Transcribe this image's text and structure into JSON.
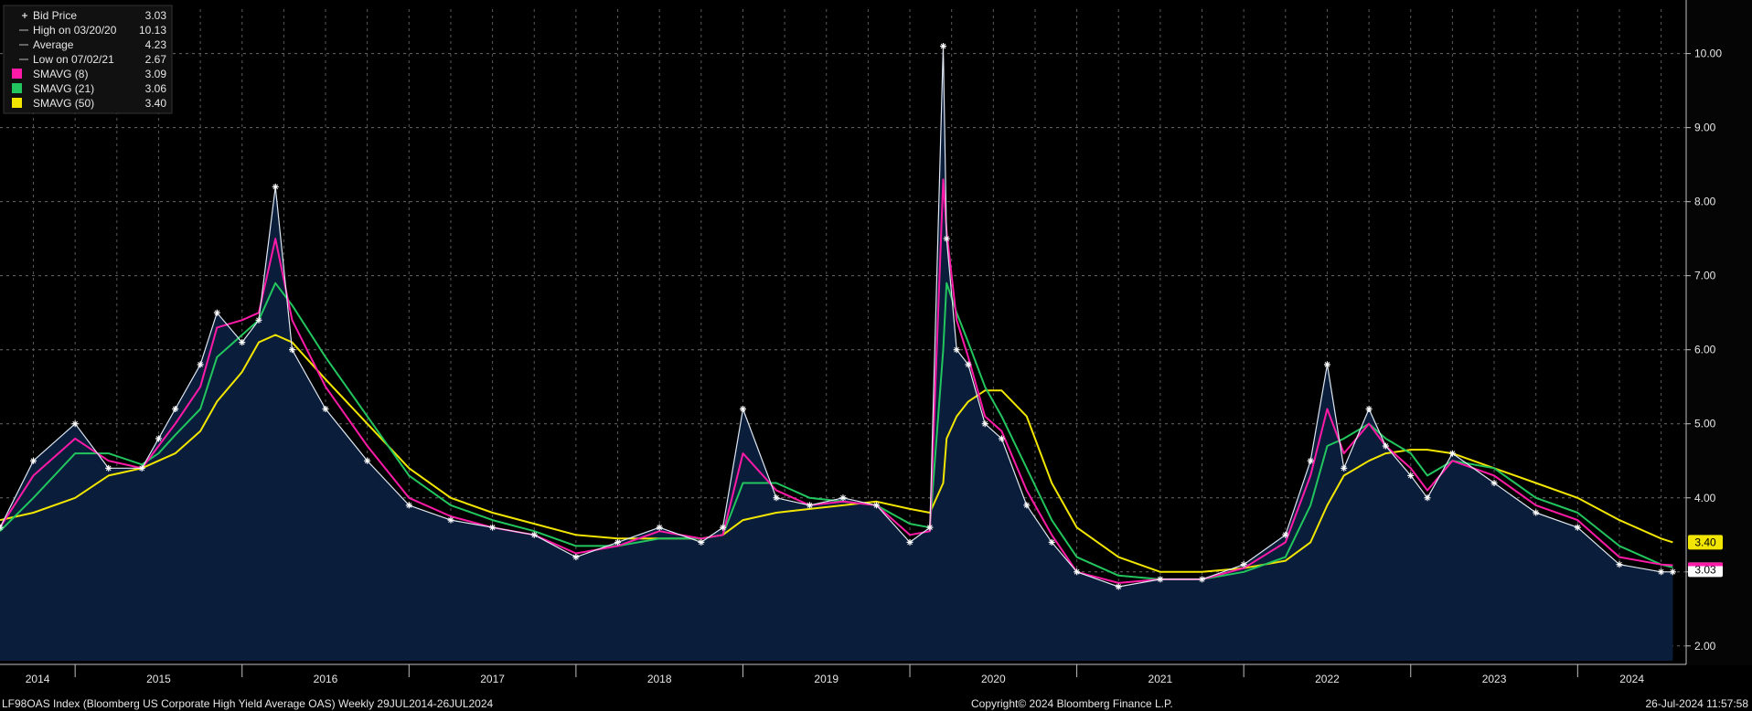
{
  "chart_data": {
    "type": "line",
    "title": "",
    "xlabel": "",
    "ylabel": "",
    "ylim": [
      1.8,
      10.6
    ],
    "y_ticks": [
      "2.00",
      "3.00",
      "4.00",
      "5.00",
      "6.00",
      "7.00",
      "8.00",
      "9.00",
      "10.00"
    ],
    "x_tick_labels": [
      "2014",
      "2015",
      "2016",
      "2017",
      "2018",
      "2019",
      "2020",
      "2021",
      "2022",
      "2023",
      "2024"
    ],
    "grid": true,
    "legend_position": "top-left",
    "legend": [
      {
        "label": "Bid Price",
        "value": "3.03"
      },
      {
        "label": "High on 03/20/20",
        "value": "10.13"
      },
      {
        "label": "Average",
        "value": "4.23"
      },
      {
        "label": "Low on 07/02/21",
        "value": "2.67"
      },
      {
        "label": "SMAVG (8)",
        "value": "3.09"
      },
      {
        "label": "SMAVG (21)",
        "value": "3.06"
      },
      {
        "label": "SMAVG (50)",
        "value": "3.40"
      }
    ],
    "last_value_labels": [
      "3.40",
      "3.03"
    ],
    "colors": {
      "background": "#000000",
      "area": "#0a1d3a",
      "price_line": "#dfe7f2",
      "sma8": "#ff1aa8",
      "sma21": "#22c55e",
      "sma50": "#f2e600",
      "marker": "#ffffff"
    },
    "x": [
      2014.55,
      2014.75,
      2015.0,
      2015.2,
      2015.4,
      2015.5,
      2015.6,
      2015.75,
      2015.85,
      2016.0,
      2016.1,
      2016.2,
      2016.3,
      2016.5,
      2016.75,
      2017.0,
      2017.25,
      2017.5,
      2017.75,
      2018.0,
      2018.25,
      2018.5,
      2018.75,
      2018.88,
      2019.0,
      2019.2,
      2019.4,
      2019.6,
      2019.8,
      2020.0,
      2020.12,
      2020.2,
      2020.22,
      2020.28,
      2020.35,
      2020.45,
      2020.55,
      2020.7,
      2020.85,
      2021.0,
      2021.25,
      2021.5,
      2021.75,
      2022.0,
      2022.25,
      2022.4,
      2022.5,
      2022.6,
      2022.75,
      2022.85,
      2023.0,
      2023.1,
      2023.25,
      2023.5,
      2023.75,
      2024.0,
      2024.25,
      2024.5,
      2024.57
    ],
    "series": [
      {
        "name": "Bid Price",
        "color": "#dfe7f2",
        "values": [
          3.6,
          4.5,
          5.0,
          4.4,
          4.4,
          4.8,
          5.2,
          5.8,
          6.5,
          6.1,
          6.4,
          8.2,
          6.0,
          5.2,
          4.5,
          3.9,
          3.7,
          3.6,
          3.5,
          3.2,
          3.4,
          3.6,
          3.4,
          3.6,
          5.2,
          4.0,
          3.9,
          4.0,
          3.9,
          3.4,
          3.6,
          10.1,
          7.5,
          6.0,
          5.8,
          5.0,
          4.8,
          3.9,
          3.4,
          3.0,
          2.8,
          2.9,
          2.9,
          3.1,
          3.5,
          4.5,
          5.8,
          4.4,
          5.2,
          4.7,
          4.3,
          4.0,
          4.6,
          4.2,
          3.8,
          3.6,
          3.1,
          3.0,
          3.0
        ]
      },
      {
        "name": "SMAVG (8)",
        "color": "#ff1aa8",
        "values": [
          3.6,
          4.3,
          4.8,
          4.5,
          4.4,
          4.7,
          5.0,
          5.5,
          6.3,
          6.4,
          6.5,
          7.5,
          6.4,
          5.5,
          4.7,
          4.0,
          3.75,
          3.6,
          3.5,
          3.25,
          3.35,
          3.55,
          3.45,
          3.5,
          4.6,
          4.1,
          3.9,
          3.95,
          3.9,
          3.5,
          3.55,
          8.3,
          7.6,
          6.4,
          5.9,
          5.1,
          4.9,
          4.1,
          3.5,
          3.0,
          2.85,
          2.9,
          2.9,
          3.05,
          3.4,
          4.3,
          5.2,
          4.6,
          5.0,
          4.7,
          4.4,
          4.1,
          4.5,
          4.3,
          3.9,
          3.7,
          3.2,
          3.1,
          3.09
        ]
      },
      {
        "name": "SMAVG (21)",
        "color": "#22c55e",
        "values": [
          3.55,
          4.0,
          4.6,
          4.6,
          4.45,
          4.6,
          4.85,
          5.2,
          5.9,
          6.2,
          6.4,
          6.9,
          6.6,
          5.9,
          5.1,
          4.3,
          3.9,
          3.7,
          3.55,
          3.35,
          3.35,
          3.45,
          3.45,
          3.5,
          4.2,
          4.2,
          4.0,
          3.95,
          3.9,
          3.65,
          3.6,
          6.0,
          6.9,
          6.5,
          6.1,
          5.5,
          5.1,
          4.4,
          3.7,
          3.2,
          2.95,
          2.9,
          2.9,
          3.0,
          3.2,
          3.9,
          4.7,
          4.8,
          5.0,
          4.8,
          4.6,
          4.3,
          4.5,
          4.4,
          4.0,
          3.8,
          3.35,
          3.1,
          3.06
        ]
      },
      {
        "name": "SMAVG (50)",
        "color": "#f2e600",
        "values": [
          3.7,
          3.8,
          4.0,
          4.3,
          4.4,
          4.5,
          4.6,
          4.9,
          5.3,
          5.7,
          6.1,
          6.2,
          6.1,
          5.6,
          5.0,
          4.4,
          4.0,
          3.8,
          3.65,
          3.5,
          3.45,
          3.45,
          3.45,
          3.5,
          3.7,
          3.8,
          3.85,
          3.9,
          3.95,
          3.85,
          3.8,
          4.2,
          4.8,
          5.1,
          5.3,
          5.45,
          5.45,
          5.1,
          4.2,
          3.6,
          3.2,
          3.0,
          3.0,
          3.05,
          3.15,
          3.4,
          3.9,
          4.3,
          4.5,
          4.6,
          4.65,
          4.65,
          4.6,
          4.4,
          4.2,
          4.0,
          3.7,
          3.45,
          3.4
        ]
      }
    ]
  },
  "footer": {
    "left": "LF98OAS Index (Bloomberg US Corporate High Yield Average OAS)  Weekly 29JUL2014-26JUL2024",
    "center": "Copyright© 2024 Bloomberg Finance L.P.",
    "right": "26-Jul-2024 11:57:58"
  }
}
